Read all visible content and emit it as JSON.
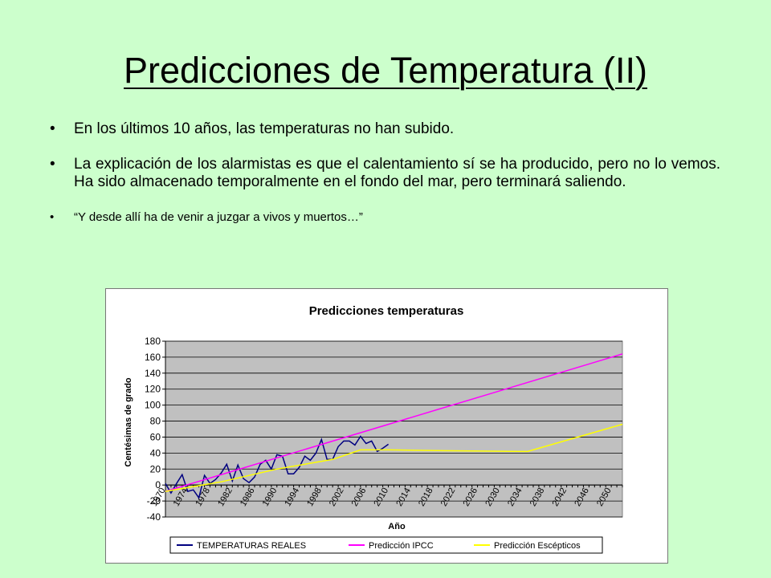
{
  "slide": {
    "title": "Predicciones de Temperatura (II)",
    "bullets": [
      "En los últimos 10 años, las temperaturas no han subido.",
      "La explicación de los alarmistas es que el calentamiento sí se ha producido, pero no lo vemos. Ha sido almacenado temporalmente en el fondo del mar, pero terminará saliendo.",
      "“Y desde allí ha de venir a juzgar a vivos y muertos…”"
    ],
    "bullet_symbol": "•"
  },
  "chart_data": {
    "type": "line",
    "title": "Predicciones temperaturas",
    "xlabel": "Año",
    "ylabel": "Centésimas de grado",
    "xlim": [
      1970,
      2052
    ],
    "ylim": [
      -40,
      180
    ],
    "yticks": [
      -40,
      -20,
      0,
      20,
      40,
      60,
      80,
      100,
      120,
      140,
      160,
      180
    ],
    "xticks": [
      1970,
      1974,
      1978,
      1982,
      1986,
      1990,
      1994,
      1998,
      2002,
      2006,
      2010,
      2014,
      2018,
      2022,
      2026,
      2030,
      2034,
      2038,
      2042,
      2046,
      2050
    ],
    "grid": true,
    "legend_position": "bottom",
    "colors": {
      "plot_bg": "#c0c0c0",
      "grid": "#000000"
    },
    "series": [
      {
        "name": "TEMPERATURAS REALES",
        "color": "#000080",
        "x": [
          1970,
          1971,
          1972,
          1973,
          1974,
          1975,
          1976,
          1977,
          1978,
          1979,
          1980,
          1981,
          1982,
          1983,
          1984,
          1985,
          1986,
          1987,
          1988,
          1989,
          1990,
          1991,
          1992,
          1993,
          1994,
          1995,
          1996,
          1997,
          1998,
          1999,
          2000,
          2001,
          2002,
          2003,
          2004,
          2005,
          2006,
          2007,
          2008,
          2009,
          2010
        ],
        "y": [
          2,
          -10,
          2,
          13,
          -8,
          -6,
          -16,
          12,
          2,
          7,
          15,
          26,
          5,
          25,
          8,
          3,
          10,
          26,
          31,
          20,
          38,
          36,
          14,
          14,
          22,
          36,
          31,
          40,
          57,
          32,
          32,
          48,
          55,
          55,
          50,
          61,
          52,
          55,
          42,
          46,
          51
        ]
      },
      {
        "name": "Predicción IPCC",
        "color": "#ff00ff",
        "x": [
          1970,
          2052
        ],
        "y": [
          -8,
          164
        ]
      },
      {
        "name": "Predicción Escépticos",
        "color": "#ffff00",
        "x": [
          1970,
          1980,
          1990,
          2000,
          2005,
          2010,
          2020,
          2035,
          2052
        ],
        "y": [
          -8,
          4,
          20,
          32,
          44,
          44,
          43,
          42,
          76
        ]
      }
    ]
  }
}
